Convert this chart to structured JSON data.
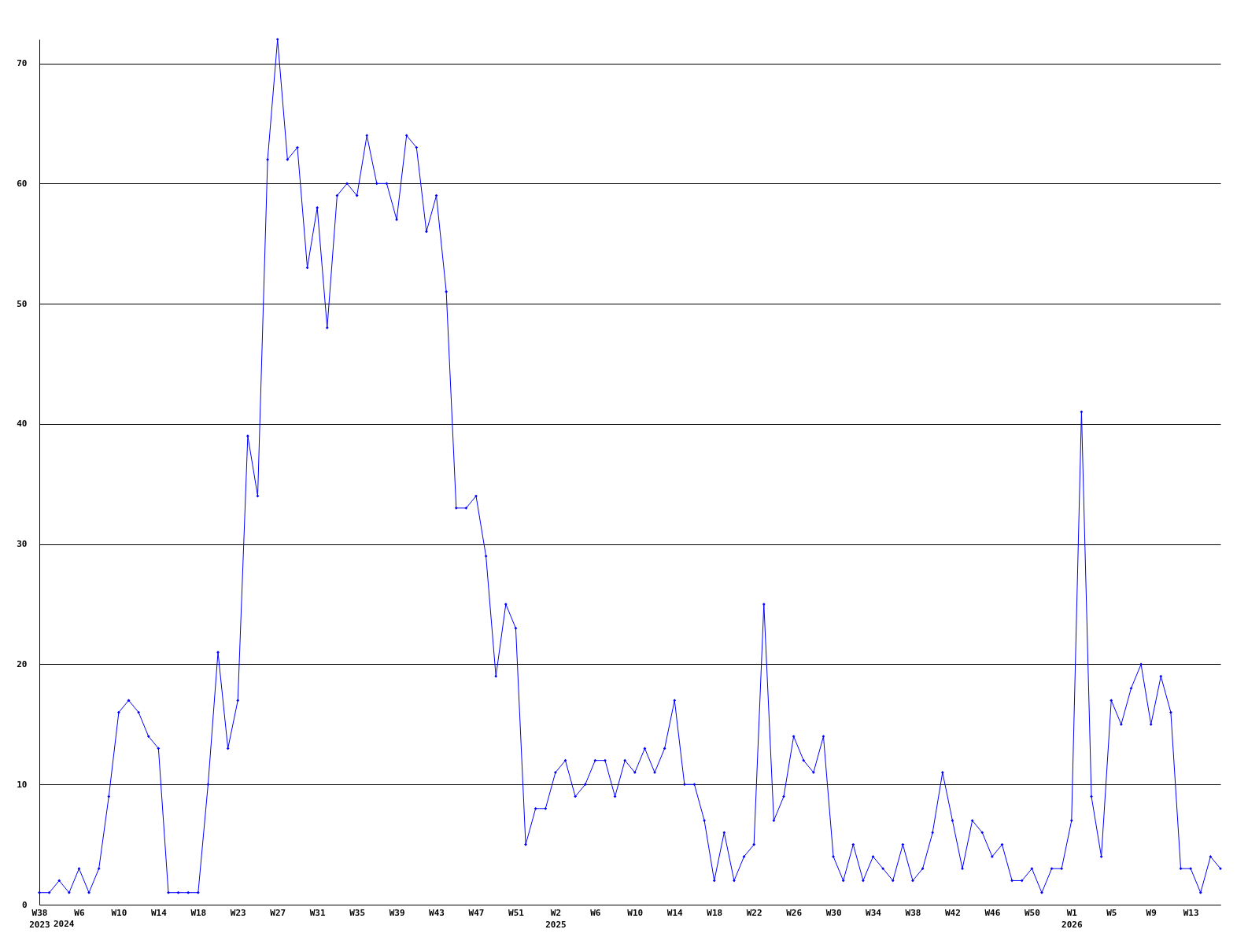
{
  "chart_data": {
    "type": "line",
    "categories": [
      "W38\n2023",
      null,
      null,
      null,
      "W6",
      null,
      null,
      null,
      "W10",
      null,
      null,
      null,
      "W14",
      null,
      null,
      null,
      "W18",
      null,
      null,
      null,
      "W23",
      null,
      null,
      null,
      "W27",
      null,
      null,
      null,
      "W31",
      null,
      null,
      null,
      "W35",
      null,
      null,
      null,
      "W39",
      null,
      null,
      null,
      "W43",
      null,
      null,
      null,
      "W47",
      null,
      null,
      null,
      "W51",
      null,
      null,
      null,
      "W2\n2025",
      null,
      null,
      null,
      "W6",
      null,
      null,
      null,
      "W10",
      null,
      null,
      null,
      "W14",
      null,
      null,
      null,
      "W18",
      null,
      null,
      null,
      "W22",
      null,
      null,
      null,
      "W26",
      null,
      null,
      null,
      "W30",
      null,
      null,
      null,
      "W34",
      null,
      null,
      null,
      "W38",
      null,
      null,
      null,
      "W42",
      null,
      null,
      null,
      "W46",
      null,
      null,
      null,
      "W50",
      null,
      null,
      null,
      "W1\n2026",
      null,
      null,
      null,
      "W5",
      null,
      null,
      null,
      "W9",
      null,
      null,
      null,
      "W13",
      null,
      null,
      null
    ],
    "series": [
      {
        "color": "#0000ff",
        "values": [
          1,
          1,
          2,
          1,
          3,
          1,
          3,
          9,
          16,
          17,
          16,
          14,
          13,
          1,
          1,
          1,
          1,
          10,
          21,
          13,
          17,
          39,
          34,
          62,
          72,
          62,
          63,
          53,
          58,
          48,
          59,
          60,
          59,
          64,
          60,
          60,
          57,
          64,
          63,
          56,
          59,
          51,
          33,
          33,
          34,
          29,
          19,
          25,
          23,
          5,
          8,
          8,
          11,
          12,
          9,
          10,
          12,
          12,
          9,
          12,
          11,
          13,
          11,
          13,
          17,
          10,
          10,
          7,
          2,
          6,
          2,
          4,
          5,
          25,
          7,
          9,
          14,
          12,
          11,
          14,
          4,
          2,
          5,
          2,
          4,
          3,
          2,
          5,
          2,
          3,
          6,
          11,
          7,
          3,
          7,
          6,
          4,
          5,
          2,
          2,
          3,
          1,
          3,
          3,
          7,
          41,
          9,
          4,
          17,
          15,
          18,
          20,
          15,
          19,
          16,
          3,
          3,
          1,
          4,
          3
        ]
      }
    ],
    "ylim": [
      0,
      72
    ],
    "yticks": [
      0,
      10,
      20,
      30,
      40,
      50,
      60,
      70
    ],
    "grid": "y",
    "marker": "diamond",
    "line_style": "solid",
    "annotations": [
      "2024"
    ]
  }
}
